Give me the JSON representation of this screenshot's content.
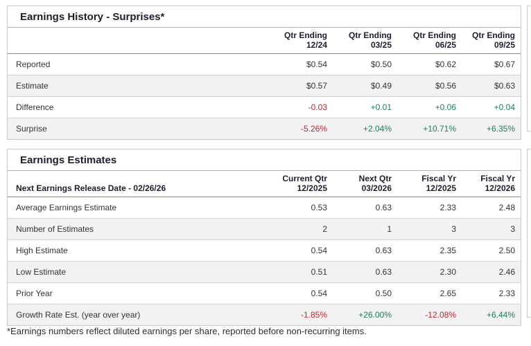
{
  "colors": {
    "negative": "#b82837",
    "positive": "#1f7a63",
    "header_text": "#1c1e2e",
    "row_alt_background": "#f2f2f2"
  },
  "history": {
    "title": "Earnings History - Surprises*",
    "columns": [
      {
        "line1": "Qtr Ending",
        "line2": "12/24"
      },
      {
        "line1": "Qtr Ending",
        "line2": "03/25"
      },
      {
        "line1": "Qtr Ending",
        "line2": "06/25"
      },
      {
        "line1": "Qtr Ending",
        "line2": "09/25"
      }
    ],
    "rows": [
      {
        "label": "Reported",
        "values": [
          "$0.54",
          "$0.50",
          "$0.62",
          "$0.67"
        ]
      },
      {
        "label": "Estimate",
        "values": [
          "$0.57",
          "$0.49",
          "$0.56",
          "$0.63"
        ]
      },
      {
        "label": "Difference",
        "values": [
          "-0.03",
          "+0.01",
          "+0.06",
          "+0.04"
        ]
      },
      {
        "label": "Surprise",
        "values": [
          "-5.26%",
          "+2.04%",
          "+10.71%",
          "+6.35%"
        ]
      }
    ]
  },
  "estimates": {
    "title": "Earnings Estimates",
    "release_label": "Next Earnings Release Date - 02/26/26",
    "columns": [
      {
        "line1": "Current Qtr",
        "line2": "12/2025"
      },
      {
        "line1": "Next Qtr",
        "line2": "03/2026"
      },
      {
        "line1": "Fiscal Yr",
        "line2": "12/2025"
      },
      {
        "line1": "Fiscal Yr",
        "line2": "12/2026"
      }
    ],
    "rows": [
      {
        "label": "Average Earnings Estimate",
        "values": [
          "0.53",
          "0.63",
          "2.33",
          "2.48"
        ]
      },
      {
        "label": "Number of Estimates",
        "values": [
          "2",
          "1",
          "3",
          "3"
        ]
      },
      {
        "label": "High Estimate",
        "values": [
          "0.54",
          "0.63",
          "2.35",
          "2.50"
        ]
      },
      {
        "label": "Low Estimate",
        "values": [
          "0.51",
          "0.63",
          "2.30",
          "2.46"
        ]
      },
      {
        "label": "Prior Year",
        "values": [
          "0.54",
          "0.50",
          "2.65",
          "2.33"
        ]
      },
      {
        "label": "Growth Rate Est. (year over year)",
        "values": [
          "-1.85%",
          "+26.00%",
          "-12.08%",
          "+6.44%"
        ]
      }
    ]
  },
  "footnote": "*Earnings numbers reflect diluted earnings per share, reported before non-recurring items."
}
